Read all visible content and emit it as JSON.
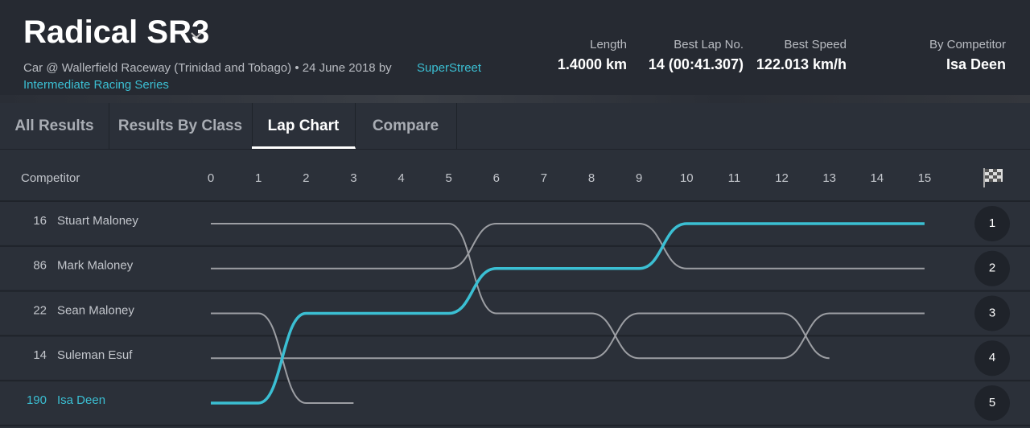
{
  "header": {
    "title": "Radical SR3",
    "subtitle": "Car @ Wallerfield Raceway (Trinidad and Tobago) • 24 June 2018 by",
    "organizer": "SuperStreet",
    "series": "Intermediate Racing Series"
  },
  "stats": [
    {
      "label": "Length",
      "value": "1.4000 km"
    },
    {
      "label": "Best Lap No.",
      "value": "14 (00:41.307)"
    },
    {
      "label": "Best Speed",
      "value": "122.013 km/h"
    },
    {
      "label": "By Competitor",
      "value": "Isa Deen"
    }
  ],
  "tabs": [
    "All Results",
    "Results By Class",
    "Lap Chart",
    "Compare"
  ],
  "lap_chart": {
    "column_label": "Competitor",
    "laps": [
      0,
      1,
      2,
      3,
      4,
      5,
      6,
      7,
      8,
      9,
      10,
      11,
      12,
      13,
      14,
      15
    ],
    "positions": [
      1,
      2,
      3,
      4,
      5
    ],
    "competitors": [
      {
        "number": "16",
        "name": "Stuart Maloney",
        "positions": [
          1,
          1,
          1,
          1,
          1,
          1,
          3,
          3,
          3,
          4,
          4,
          4,
          4,
          3,
          3,
          3
        ]
      },
      {
        "number": "86",
        "name": "Mark Maloney",
        "positions": [
          2,
          2,
          2,
          2,
          2,
          2,
          1,
          1,
          1,
          1,
          2,
          2,
          2,
          2,
          2,
          2
        ]
      },
      {
        "number": "22",
        "name": "Sean Maloney",
        "positions": [
          3,
          3,
          5,
          5
        ]
      },
      {
        "number": "14",
        "name": "Suleman Esuf",
        "positions": [
          4,
          4,
          4,
          4,
          4,
          4,
          4,
          4,
          4,
          3,
          3,
          3,
          3,
          4
        ]
      },
      {
        "number": "190",
        "name": "Isa Deen",
        "positions": [
          5,
          5,
          3,
          3,
          3,
          3,
          2,
          2,
          2,
          2,
          1,
          1,
          1,
          1,
          1,
          1
        ],
        "highlight": true
      }
    ]
  }
}
